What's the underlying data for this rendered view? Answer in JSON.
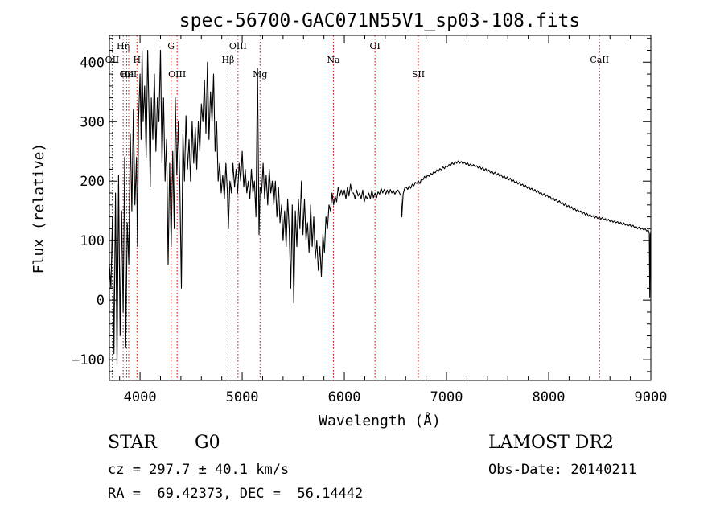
{
  "chart_data": {
    "type": "line",
    "title": "spec-56700-GAC071N55V1_sp03-108.fits",
    "xlabel": "Wavelength (Å)",
    "ylabel": "Flux (relative)",
    "xlim": [
      3700,
      9000
    ],
    "ylim": [
      -135,
      445
    ],
    "xticks": [
      4000,
      5000,
      6000,
      7000,
      8000,
      9000
    ],
    "xtick_labels": [
      "4000",
      "5000",
      "6000",
      "7000",
      "8000",
      "9000"
    ],
    "yticks": [
      -100,
      0,
      100,
      200,
      300,
      400
    ],
    "ytick_labels": [
      "−100",
      "0",
      "100",
      "200",
      "300",
      "400"
    ],
    "grid": false,
    "line_color": "#000000",
    "marker_color": "#cc0000",
    "lines": [
      {
        "label": "OII",
        "x": 3727,
        "row": 2
      },
      {
        "label": "Hη",
        "x": 3835,
        "row": 1
      },
      {
        "label": "OII",
        "x": 3869,
        "row": 3
      },
      {
        "label": "HeI",
        "x": 3889,
        "row": 3
      },
      {
        "label": "H",
        "x": 3970,
        "row": 2
      },
      {
        "label": "G",
        "x": 4304,
        "row": 1
      },
      {
        "label": "OIII",
        "x": 4363,
        "row": 3
      },
      {
        "label": "Hβ",
        "x": 4861,
        "row": 2
      },
      {
        "label": "OIII",
        "x": 4959,
        "row": 1
      },
      {
        "label": "Mg",
        "x": 5175,
        "row": 3
      },
      {
        "label": "Na",
        "x": 5893,
        "row": 2
      },
      {
        "label": "OI",
        "x": 6300,
        "row": 1
      },
      {
        "label": "SII",
        "x": 6724,
        "row": 3
      },
      {
        "label": "CaII",
        "x": 8498,
        "row": 2
      }
    ],
    "spectrum": [
      [
        3700,
        60
      ],
      [
        3715,
        20
      ],
      [
        3730,
        140
      ],
      [
        3745,
        -90
      ],
      [
        3760,
        180
      ],
      [
        3775,
        -110
      ],
      [
        3790,
        210
      ],
      [
        3805,
        -60
      ],
      [
        3820,
        150
      ],
      [
        3835,
        -20
      ],
      [
        3850,
        240
      ],
      [
        3860,
        -80
      ],
      [
        3875,
        130
      ],
      [
        3890,
        60
      ],
      [
        3905,
        280
      ],
      [
        3920,
        150
      ],
      [
        3935,
        320
      ],
      [
        3950,
        160
      ],
      [
        3965,
        240
      ],
      [
        3975,
        90
      ],
      [
        3985,
        300
      ],
      [
        4000,
        380
      ],
      [
        4010,
        270
      ],
      [
        4020,
        420
      ],
      [
        4030,
        300
      ],
      [
        4045,
        360
      ],
      [
        4060,
        240
      ],
      [
        4075,
        420
      ],
      [
        4090,
        300
      ],
      [
        4100,
        190
      ],
      [
        4110,
        340
      ],
      [
        4125,
        270
      ],
      [
        4140,
        380
      ],
      [
        4155,
        250
      ],
      [
        4170,
        340
      ],
      [
        4185,
        300
      ],
      [
        4200,
        420
      ],
      [
        4215,
        230
      ],
      [
        4230,
        340
      ],
      [
        4245,
        200
      ],
      [
        4260,
        270
      ],
      [
        4275,
        60
      ],
      [
        4290,
        230
      ],
      [
        4305,
        90
      ],
      [
        4320,
        250
      ],
      [
        4335,
        120
      ],
      [
        4345,
        340
      ],
      [
        4360,
        210
      ],
      [
        4375,
        300
      ],
      [
        4390,
        190
      ],
      [
        4405,
        20
      ],
      [
        4420,
        280
      ],
      [
        4435,
        200
      ],
      [
        4450,
        310
      ],
      [
        4465,
        220
      ],
      [
        4480,
        270
      ],
      [
        4495,
        200
      ],
      [
        4510,
        300
      ],
      [
        4525,
        230
      ],
      [
        4540,
        290
      ],
      [
        4555,
        220
      ],
      [
        4570,
        300
      ],
      [
        4585,
        250
      ],
      [
        4600,
        330
      ],
      [
        4615,
        300
      ],
      [
        4630,
        370
      ],
      [
        4645,
        280
      ],
      [
        4660,
        400
      ],
      [
        4675,
        270
      ],
      [
        4690,
        350
      ],
      [
        4705,
        300
      ],
      [
        4720,
        380
      ],
      [
        4735,
        250
      ],
      [
        4750,
        300
      ],
      [
        4765,
        200
      ],
      [
        4780,
        230
      ],
      [
        4795,
        180
      ],
      [
        4810,
        210
      ],
      [
        4825,
        170
      ],
      [
        4840,
        230
      ],
      [
        4855,
        180
      ],
      [
        4865,
        120
      ],
      [
        4880,
        200
      ],
      [
        4895,
        180
      ],
      [
        4910,
        230
      ],
      [
        4925,
        190
      ],
      [
        4940,
        220
      ],
      [
        4955,
        180
      ],
      [
        4970,
        230
      ],
      [
        4985,
        200
      ],
      [
        5000,
        250
      ],
      [
        5015,
        190
      ],
      [
        5030,
        220
      ],
      [
        5045,
        180
      ],
      [
        5060,
        200
      ],
      [
        5075,
        170
      ],
      [
        5090,
        220
      ],
      [
        5105,
        180
      ],
      [
        5120,
        200
      ],
      [
        5135,
        140
      ],
      [
        5150,
        390
      ],
      [
        5165,
        110
      ],
      [
        5175,
        190
      ],
      [
        5190,
        180
      ],
      [
        5205,
        230
      ],
      [
        5220,
        170
      ],
      [
        5235,
        210
      ],
      [
        5250,
        160
      ],
      [
        5265,
        220
      ],
      [
        5280,
        180
      ],
      [
        5295,
        200
      ],
      [
        5310,
        160
      ],
      [
        5325,
        200
      ],
      [
        5340,
        140
      ],
      [
        5355,
        190
      ],
      [
        5370,
        130
      ],
      [
        5385,
        160
      ],
      [
        5400,
        100
      ],
      [
        5415,
        150
      ],
      [
        5430,
        90
      ],
      [
        5445,
        170
      ],
      [
        5460,
        120
      ],
      [
        5475,
        20
      ],
      [
        5490,
        160
      ],
      [
        5505,
        -5
      ],
      [
        5520,
        150
      ],
      [
        5535,
        90
      ],
      [
        5550,
        170
      ],
      [
        5565,
        120
      ],
      [
        5580,
        200
      ],
      [
        5595,
        110
      ],
      [
        5610,
        170
      ],
      [
        5625,
        100
      ],
      [
        5640,
        130
      ],
      [
        5655,
        80
      ],
      [
        5670,
        160
      ],
      [
        5685,
        90
      ],
      [
        5700,
        140
      ],
      [
        5715,
        70
      ],
      [
        5730,
        100
      ],
      [
        5745,
        50
      ],
      [
        5760,
        90
      ],
      [
        5775,
        40
      ],
      [
        5790,
        110
      ],
      [
        5805,
        80
      ],
      [
        5820,
        140
      ],
      [
        5835,
        120
      ],
      [
        5850,
        160
      ],
      [
        5865,
        150
      ],
      [
        5880,
        180
      ],
      [
        5895,
        160
      ],
      [
        5910,
        175
      ],
      [
        5925,
        165
      ],
      [
        5940,
        190
      ],
      [
        5955,
        175
      ],
      [
        5970,
        185
      ],
      [
        5985,
        175
      ],
      [
        6000,
        185
      ],
      [
        6015,
        170
      ],
      [
        6030,
        190
      ],
      [
        6045,
        175
      ],
      [
        6060,
        195
      ],
      [
        6075,
        180
      ],
      [
        6090,
        180
      ],
      [
        6105,
        170
      ],
      [
        6120,
        185
      ],
      [
        6135,
        175
      ],
      [
        6150,
        180
      ],
      [
        6165,
        170
      ],
      [
        6180,
        185
      ],
      [
        6195,
        165
      ],
      [
        6210,
        175
      ],
      [
        6225,
        170
      ],
      [
        6240,
        180
      ],
      [
        6255,
        170
      ],
      [
        6270,
        185
      ],
      [
        6285,
        172
      ],
      [
        6300,
        180
      ],
      [
        6315,
        172
      ],
      [
        6330,
        182
      ],
      [
        6345,
        178
      ],
      [
        6360,
        188
      ],
      [
        6375,
        180
      ],
      [
        6390,
        186
      ],
      [
        6405,
        178
      ],
      [
        6420,
        185
      ],
      [
        6435,
        178
      ],
      [
        6450,
        186
      ],
      [
        6465,
        180
      ],
      [
        6480,
        184
      ],
      [
        6495,
        178
      ],
      [
        6510,
        183
      ],
      [
        6525,
        185
      ],
      [
        6540,
        180
      ],
      [
        6555,
        175
      ],
      [
        6563,
        140
      ],
      [
        6575,
        178
      ],
      [
        6590,
        188
      ],
      [
        6605,
        190
      ],
      [
        6620,
        186
      ],
      [
        6635,
        192
      ],
      [
        6650,
        188
      ],
      [
        6665,
        195
      ],
      [
        6680,
        192
      ],
      [
        6695,
        198
      ],
      [
        6710,
        196
      ],
      [
        6725,
        200
      ],
      [
        6740,
        196
      ],
      [
        6755,
        204
      ],
      [
        6770,
        202
      ],
      [
        6785,
        208
      ],
      [
        6800,
        205
      ],
      [
        6815,
        210
      ],
      [
        6830,
        208
      ],
      [
        6845,
        213
      ],
      [
        6860,
        211
      ],
      [
        6875,
        216
      ],
      [
        6890,
        214
      ],
      [
        6905,
        219
      ],
      [
        6920,
        216
      ],
      [
        6935,
        221
      ],
      [
        6950,
        219
      ],
      [
        6965,
        224
      ],
      [
        6980,
        221
      ],
      [
        6995,
        226
      ],
      [
        7010,
        224
      ],
      [
        7025,
        228
      ],
      [
        7040,
        226
      ],
      [
        7055,
        231
      ],
      [
        7070,
        228
      ],
      [
        7085,
        233
      ],
      [
        7100,
        230
      ],
      [
        7115,
        234
      ],
      [
        7130,
        230
      ],
      [
        7145,
        233
      ],
      [
        7160,
        229
      ],
      [
        7175,
        232
      ],
      [
        7190,
        228
      ],
      [
        7205,
        231
      ],
      [
        7220,
        226
      ],
      [
        7235,
        229
      ],
      [
        7250,
        225
      ],
      [
        7265,
        228
      ],
      [
        7280,
        224
      ],
      [
        7295,
        226
      ],
      [
        7310,
        222
      ],
      [
        7325,
        225
      ],
      [
        7340,
        220
      ],
      [
        7355,
        223
      ],
      [
        7370,
        218
      ],
      [
        7385,
        221
      ],
      [
        7400,
        216
      ],
      [
        7415,
        219
      ],
      [
        7430,
        214
      ],
      [
        7445,
        217
      ],
      [
        7460,
        212
      ],
      [
        7475,
        215
      ],
      [
        7490,
        210
      ],
      [
        7505,
        213
      ],
      [
        7520,
        208
      ],
      [
        7535,
        211
      ],
      [
        7550,
        206
      ],
      [
        7565,
        209
      ],
      [
        7580,
        204
      ],
      [
        7595,
        207
      ],
      [
        7610,
        202
      ],
      [
        7625,
        205
      ],
      [
        7640,
        199
      ],
      [
        7655,
        202
      ],
      [
        7670,
        197
      ],
      [
        7685,
        200
      ],
      [
        7700,
        195
      ],
      [
        7715,
        198
      ],
      [
        7730,
        193
      ],
      [
        7745,
        195
      ],
      [
        7760,
        190
      ],
      [
        7775,
        193
      ],
      [
        7790,
        188
      ],
      [
        7805,
        191
      ],
      [
        7820,
        186
      ],
      [
        7835,
        188
      ],
      [
        7850,
        183
      ],
      [
        7865,
        186
      ],
      [
        7880,
        181
      ],
      [
        7895,
        184
      ],
      [
        7910,
        179
      ],
      [
        7925,
        181
      ],
      [
        7940,
        176
      ],
      [
        7955,
        179
      ],
      [
        7970,
        174
      ],
      [
        7985,
        177
      ],
      [
        8000,
        172
      ],
      [
        8015,
        174
      ],
      [
        8030,
        169
      ],
      [
        8045,
        172
      ],
      [
        8060,
        167
      ],
      [
        8075,
        169
      ],
      [
        8090,
        164
      ],
      [
        8105,
        167
      ],
      [
        8120,
        162
      ],
      [
        8135,
        164
      ],
      [
        8150,
        159
      ],
      [
        8165,
        162
      ],
      [
        8180,
        157
      ],
      [
        8195,
        159
      ],
      [
        8210,
        154
      ],
      [
        8225,
        157
      ],
      [
        8240,
        152
      ],
      [
        8255,
        154
      ],
      [
        8270,
        150
      ],
      [
        8285,
        152
      ],
      [
        8300,
        148
      ],
      [
        8315,
        150
      ],
      [
        8330,
        145
      ],
      [
        8345,
        148
      ],
      [
        8360,
        143
      ],
      [
        8375,
        146
      ],
      [
        8390,
        141
      ],
      [
        8405,
        144
      ],
      [
        8420,
        140
      ],
      [
        8435,
        142
      ],
      [
        8450,
        138
      ],
      [
        8465,
        141
      ],
      [
        8480,
        137
      ],
      [
        8495,
        140
      ],
      [
        8510,
        136
      ],
      [
        8525,
        139
      ],
      [
        8540,
        135
      ],
      [
        8555,
        137
      ],
      [
        8570,
        133
      ],
      [
        8585,
        136
      ],
      [
        8600,
        132
      ],
      [
        8615,
        135
      ],
      [
        8630,
        131
      ],
      [
        8645,
        133
      ],
      [
        8660,
        130
      ],
      [
        8675,
        132
      ],
      [
        8690,
        128
      ],
      [
        8705,
        131
      ],
      [
        8720,
        127
      ],
      [
        8735,
        130
      ],
      [
        8750,
        126
      ],
      [
        8765,
        128
      ],
      [
        8780,
        125
      ],
      [
        8795,
        127
      ],
      [
        8810,
        123
      ],
      [
        8825,
        126
      ],
      [
        8840,
        122
      ],
      [
        8855,
        124
      ],
      [
        8870,
        120
      ],
      [
        8885,
        123
      ],
      [
        8900,
        119
      ],
      [
        8915,
        121
      ],
      [
        8930,
        118
      ],
      [
        8945,
        120
      ],
      [
        8960,
        116
      ],
      [
        8975,
        118
      ],
      [
        8985,
        112
      ],
      [
        8990,
        5
      ],
      [
        8995,
        110
      ],
      [
        9000,
        115
      ]
    ]
  },
  "info": {
    "object_class": "STAR",
    "subclass": "G0",
    "survey": "LAMOST DR2",
    "cz": "cz = 297.7 ± 40.1 km/s",
    "obs_date": "Obs-Date: 20140211",
    "coords": "RA =  69.42373, DEC =  56.14442"
  }
}
